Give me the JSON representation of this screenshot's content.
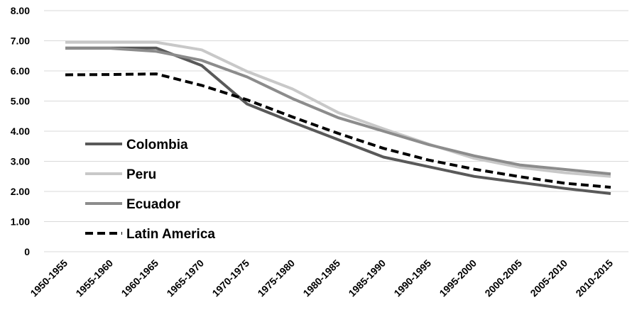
{
  "chart_data": {
    "type": "line",
    "title": "",
    "xlabel": "",
    "ylabel": "",
    "categories": [
      "1950-1955",
      "1955-1960",
      "1960-1965",
      "1965-1970",
      "1970-1975",
      "1975-1980",
      "1980-1985",
      "1985-1990",
      "1990-1995",
      "1995-2000",
      "2000-2005",
      "2005-2010",
      "2010-2015"
    ],
    "ylim": [
      0,
      8
    ],
    "yticks": [
      "0",
      "1.00",
      "2.00",
      "3.00",
      "4.00",
      "5.00",
      "6.00",
      "7.00",
      "8.00"
    ],
    "grid": true,
    "legend_position": "left",
    "series": [
      {
        "name": "Colombia",
        "color": "#595959",
        "style": "solid",
        "values": [
          6.76,
          6.76,
          6.76,
          6.18,
          4.9,
          4.3,
          3.72,
          3.14,
          2.82,
          2.5,
          2.3,
          2.1,
          1.93
        ]
      },
      {
        "name": "Peru",
        "color": "#c8c8c8",
        "style": "solid",
        "values": [
          6.95,
          6.95,
          6.95,
          6.7,
          5.98,
          5.4,
          4.62,
          4.08,
          3.57,
          3.1,
          2.8,
          2.62,
          2.5
        ]
      },
      {
        "name": "Ecuador",
        "color": "#8c8c8c",
        "style": "solid",
        "values": [
          6.75,
          6.75,
          6.65,
          6.35,
          5.8,
          5.08,
          4.45,
          4.0,
          3.55,
          3.18,
          2.88,
          2.73,
          2.58
        ]
      },
      {
        "name": "Latin America",
        "color": "#000000",
        "style": "dashed",
        "values": [
          5.87,
          5.88,
          5.9,
          5.52,
          5.04,
          4.47,
          3.93,
          3.43,
          3.04,
          2.74,
          2.49,
          2.27,
          2.14
        ]
      }
    ]
  }
}
